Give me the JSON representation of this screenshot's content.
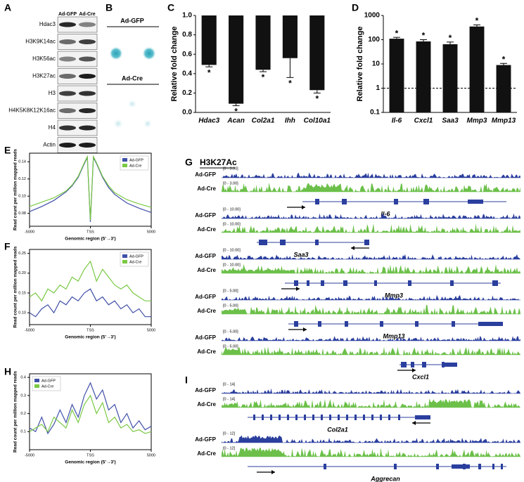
{
  "panels": {
    "A": {
      "label": "A",
      "columns": [
        "Ad-GFP",
        "Ad-Cre"
      ],
      "rows": [
        "Hdac3",
        "H3K9K14ac",
        "H3K56ac",
        "H3K27ac",
        "H3",
        "H4K5K8K12K16ac",
        "H4",
        "Actin"
      ]
    },
    "B": {
      "label": "B",
      "groups": [
        "Ad-GFP",
        "Ad-Cre"
      ]
    },
    "G": {
      "label": "G",
      "title": "H3K27Ac",
      "loci": [
        {
          "gene": "Il-6",
          "tracks": [
            {
              "name": "Ad-GFP",
              "range": "[0 - 3.00]"
            },
            {
              "name": "Ad-Cre",
              "range": "[0 - 3.00]"
            }
          ]
        },
        {
          "gene": "Saa3",
          "tracks": [
            {
              "name": "Ad-GFP",
              "range": "[0 - 10.00]"
            },
            {
              "name": "Ad-Cre",
              "range": "[0 - 10.00]"
            }
          ]
        },
        {
          "gene": "Mmp3",
          "tracks": [
            {
              "name": "Ad-GFP",
              "range": "[0 - 10.00]"
            },
            {
              "name": "Ad-Cre",
              "range": "[0 - 10.00]"
            }
          ]
        },
        {
          "gene": "Mmp13",
          "tracks": [
            {
              "name": "Ad-GFP",
              "range": "[0 - 5.00]"
            },
            {
              "name": "Ad-Cre",
              "range": "[0 - 5.00]"
            }
          ]
        },
        {
          "gene": "Cxcl1",
          "tracks": [
            {
              "name": "Ad-GFP",
              "range": "[0 - 5.00]"
            },
            {
              "name": "Ad-Cre",
              "range": "[0 - 5.00]"
            }
          ]
        }
      ]
    },
    "I": {
      "label": "I",
      "loci": [
        {
          "gene": "Col2a1",
          "tracks": [
            {
              "name": "Ad-GFP",
              "range": "[0 - 14]"
            },
            {
              "name": "Ad-Cre",
              "range": "[0 - 14]"
            }
          ]
        },
        {
          "gene": "Aggrecan",
          "tracks": [
            {
              "name": "Ad-GFP",
              "range": "[0 - 12]"
            },
            {
              "name": "Ad-Cre",
              "range": "[0 - 12]"
            }
          ]
        }
      ]
    }
  },
  "chart_data": [
    {
      "type": "bar",
      "label": "C",
      "y_label": "Relative fold change",
      "categories": [
        "Hdac3",
        "Acan",
        "Col2a1",
        "Ihh",
        "Col10a1"
      ],
      "values": [
        0.49,
        0.09,
        0.44,
        0.56,
        0.23
      ],
      "errors": [
        0.02,
        0.02,
        0.02,
        0.2,
        0.03
      ],
      "annotations": [
        "*",
        "*",
        "*",
        "*",
        "*"
      ],
      "color": "#111111",
      "baseline": 1,
      "ylim": [
        0,
        1
      ],
      "yticks": [
        {
          "value": 0,
          "label": "0.0"
        },
        0.2,
        0.4,
        0.6,
        0.8,
        {
          "value": 1,
          "label": "1.0"
        }
      ]
    },
    {
      "type": "bar",
      "label": "D",
      "y_label": "Relative fold change",
      "categories": [
        "Il-6",
        "Cxcl1",
        "Saa3",
        "Mmp3",
        "Mmp13"
      ],
      "values": [
        110,
        85,
        65,
        350,
        9
      ],
      "errors": [
        15,
        15,
        15,
        60,
        1.5
      ],
      "annotations": [
        "*",
        "*",
        "*",
        "*",
        "*"
      ],
      "color": "#111111",
      "log_scale": true,
      "reference_line": 1,
      "ylim": [
        0.1,
        1000
      ],
      "yticks": [
        0.1,
        1,
        10,
        100,
        1000
      ]
    },
    {
      "type": "line",
      "label": "E",
      "y_label": "Read count per million mapped reads",
      "x_label": "Genomic region (5'→3')",
      "legend": "upper right",
      "x": [
        -5000,
        -4000,
        -3000,
        -2000,
        -1500,
        -1000,
        -500,
        -250,
        0,
        250,
        500,
        1000,
        1500,
        2000,
        3000,
        4000,
        5000
      ],
      "series": [
        {
          "name": "Ad-GFP",
          "color": "#3f4fa8",
          "values": [
            0.082,
            0.088,
            0.095,
            0.105,
            0.112,
            0.122,
            0.138,
            0.145,
            0.07,
            0.145,
            0.138,
            0.122,
            0.11,
            0.102,
            0.092,
            0.086,
            0.081
          ]
        },
        {
          "name": "Ad-Cre",
          "color": "#7ac943",
          "values": [
            0.088,
            0.093,
            0.098,
            0.106,
            0.113,
            0.123,
            0.139,
            0.146,
            0.072,
            0.146,
            0.139,
            0.123,
            0.112,
            0.104,
            0.096,
            0.091,
            0.087
          ]
        }
      ],
      "xlim": [
        -5000,
        5000
      ],
      "xticks": [
        -5000,
        {
          "value": 0,
          "label": "TSS"
        },
        5000
      ],
      "ylim": [
        0.065,
        0.15
      ],
      "yticks": [
        0.08,
        {
          "value": 0.1,
          "label": "0.10"
        },
        0.12,
        0.14
      ]
    },
    {
      "type": "line",
      "label": "F",
      "y_label": "Read count per million mapped reads",
      "x_label": "Genomic region (5'→3')",
      "legend": "upper right",
      "x": [
        -5000,
        -4500,
        -4000,
        -3500,
        -3000,
        -2500,
        -2000,
        -1500,
        -1000,
        -500,
        0,
        500,
        1000,
        1500,
        2000,
        2500,
        3000,
        3500,
        4000,
        4500,
        5000
      ],
      "series": [
        {
          "name": "Ad-GFP",
          "color": "#3f4fa8",
          "values": [
            0.1,
            0.09,
            0.11,
            0.12,
            0.1,
            0.13,
            0.12,
            0.14,
            0.13,
            0.15,
            0.16,
            0.13,
            0.14,
            0.12,
            0.13,
            0.11,
            0.12,
            0.1,
            0.11,
            0.09,
            0.09
          ]
        },
        {
          "name": "Ad-Cre",
          "color": "#7ac943",
          "values": [
            0.14,
            0.15,
            0.13,
            0.16,
            0.15,
            0.17,
            0.16,
            0.19,
            0.18,
            0.21,
            0.23,
            0.18,
            0.21,
            0.19,
            0.17,
            0.16,
            0.17,
            0.15,
            0.14,
            0.13,
            0.13
          ]
        }
      ],
      "xlim": [
        -5000,
        5000
      ],
      "xticks": [
        -5000,
        {
          "value": 0,
          "label": "TSS"
        },
        5000
      ],
      "ylim": [
        0.07,
        0.26
      ],
      "yticks": [
        {
          "value": 0.1,
          "label": "0.10"
        },
        0.15,
        {
          "value": 0.2,
          "label": "0.20"
        },
        0.25
      ]
    },
    {
      "type": "line",
      "label": "H",
      "y_label": "Read count per million mapped reads",
      "x_label": "Genomic region (5'→3')",
      "legend": "upper left",
      "x": [
        -5000,
        -4500,
        -4000,
        -3500,
        -3000,
        -2500,
        -2000,
        -1500,
        -1000,
        -500,
        0,
        500,
        1000,
        1500,
        2000,
        2500,
        3000,
        3500,
        4000,
        4500,
        5000
      ],
      "series": [
        {
          "name": "Ad-GFP",
          "color": "#3f4fa8",
          "values": [
            0.12,
            0.1,
            0.18,
            0.09,
            0.14,
            0.22,
            0.15,
            0.25,
            0.18,
            0.3,
            0.37,
            0.28,
            0.33,
            0.22,
            0.25,
            0.15,
            0.2,
            0.12,
            0.16,
            0.11,
            0.13
          ]
        },
        {
          "name": "Ad-Cre",
          "color": "#7ac943",
          "values": [
            0.1,
            0.12,
            0.14,
            0.1,
            0.18,
            0.15,
            0.12,
            0.22,
            0.15,
            0.25,
            0.3,
            0.2,
            0.26,
            0.15,
            0.18,
            0.12,
            0.14,
            0.1,
            0.11,
            0.09,
            0.1
          ]
        }
      ],
      "xlim": [
        -5000,
        5000
      ],
      "xticks": [
        -5000,
        {
          "value": 0,
          "label": "TSS"
        },
        5000
      ],
      "ylim": [
        0,
        0.42
      ],
      "yticks": [
        0.1,
        0.2,
        0.3,
        0.4
      ]
    }
  ]
}
